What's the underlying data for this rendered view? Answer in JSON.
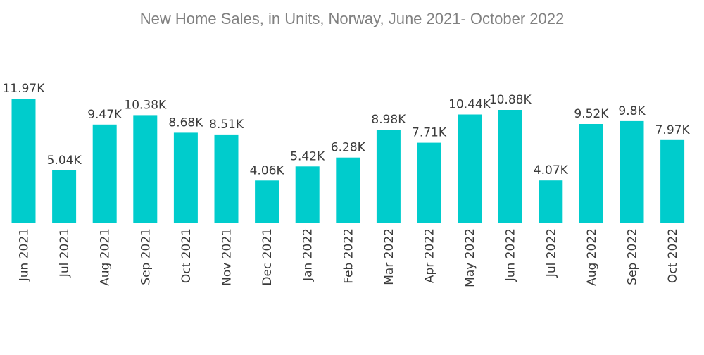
{
  "chart_data": {
    "type": "bar",
    "title": "New Home Sales, in Units, Norway, June 2021- October 2022",
    "xlabel": "",
    "ylabel": "",
    "categories": [
      "Jun 2021",
      "Jul 2021",
      "Aug 2021",
      "Sep 2021",
      "Oct 2021",
      "Nov 2021",
      "Dec 2021",
      "Jan 2022",
      "Feb 2022",
      "Mar 2022",
      "Apr 2022",
      "May 2022",
      "Jun 2022",
      "Jul 2022",
      "Aug 2022",
      "Sep 2022",
      "Oct 2022"
    ],
    "values": [
      11.97,
      5.04,
      9.47,
      10.38,
      8.68,
      8.51,
      4.06,
      5.42,
      6.28,
      8.98,
      7.71,
      10.44,
      10.88,
      4.07,
      9.52,
      9.8,
      7.97
    ],
    "value_labels": [
      "11.97K",
      "5.04K",
      "9.47K",
      "10.38K",
      "8.68K",
      "8.51K",
      "4.06K",
      "5.42K",
      "6.28K",
      "8.98K",
      "7.71K",
      "10.44K",
      "10.88K",
      "4.07K",
      "9.52K",
      "9.8K",
      "7.97K"
    ],
    "ylim": [
      0,
      11.97
    ],
    "grid": false,
    "legend": "none",
    "bar_color": "#00cccc"
  }
}
